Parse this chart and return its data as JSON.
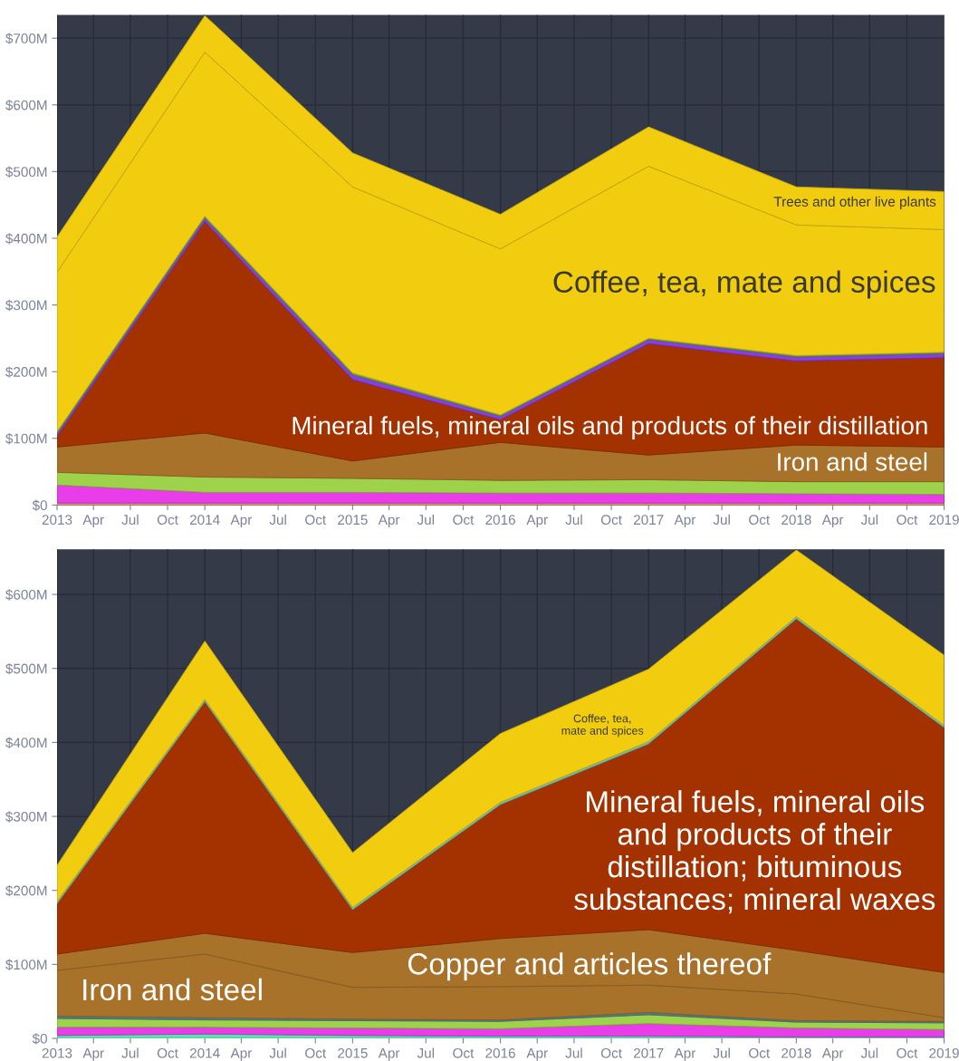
{
  "chart_data": [
    {
      "type": "area",
      "stacked": true,
      "legend": false,
      "grid": true,
      "x": [
        "2013",
        "2014",
        "2015",
        "2016",
        "2017",
        "2018",
        "2019"
      ],
      "xlim": [
        "2013",
        "2019"
      ],
      "xticks": [
        {
          "value": "2013",
          "label": "2013"
        },
        {
          "value": "2013-04",
          "label": "Apr"
        },
        {
          "value": "2013-07",
          "label": "Jul"
        },
        {
          "value": "2013-10",
          "label": "Oct"
        },
        {
          "value": "2014",
          "label": "2014"
        },
        {
          "value": "2014-04",
          "label": "Apr"
        },
        {
          "value": "2014-07",
          "label": "Jul"
        },
        {
          "value": "2014-10",
          "label": "Oct"
        },
        {
          "value": "2015",
          "label": "2015"
        },
        {
          "value": "2015-04",
          "label": "Apr"
        },
        {
          "value": "2015-07",
          "label": "Jul"
        },
        {
          "value": "2015-10",
          "label": "Oct"
        },
        {
          "value": "2016",
          "label": "2016"
        },
        {
          "value": "2016-04",
          "label": "Apr"
        },
        {
          "value": "2016-07",
          "label": "Jul"
        },
        {
          "value": "2016-10",
          "label": "Oct"
        },
        {
          "value": "2017",
          "label": "2017"
        },
        {
          "value": "2017-04",
          "label": "Apr"
        },
        {
          "value": "2017-07",
          "label": "Jul"
        },
        {
          "value": "2017-10",
          "label": "Oct"
        },
        {
          "value": "2018",
          "label": "2018"
        },
        {
          "value": "2018-04",
          "label": "Apr"
        },
        {
          "value": "2018-07",
          "label": "Jul"
        },
        {
          "value": "2018-10",
          "label": "Oct"
        },
        {
          "value": "2019",
          "label": "2019"
        }
      ],
      "ylim": [
        0,
        735
      ],
      "yticks": [
        {
          "value": 0,
          "label": "$0"
        },
        {
          "value": 100,
          "label": "$100M"
        },
        {
          "value": 200,
          "label": "$200M"
        },
        {
          "value": 300,
          "label": "$300M"
        },
        {
          "value": 400,
          "label": "$400M"
        },
        {
          "value": 500,
          "label": "$500M"
        },
        {
          "value": 600,
          "label": "$600M"
        },
        {
          "value": 700,
          "label": "$700M"
        }
      ],
      "series": [
        {
          "color": "#e8a070",
          "values": [
            3,
            3,
            3,
            3,
            3,
            3,
            3
          ]
        },
        {
          "color": "#e83de8",
          "values": [
            27,
            16,
            16,
            15,
            15,
            14,
            13
          ]
        },
        {
          "color": "#9dd24a",
          "values": [
            19,
            23,
            21,
            19,
            20,
            18,
            19
          ]
        },
        {
          "name": "Iron and steel",
          "color": "#a8722b",
          "values": [
            38,
            66,
            26,
            57,
            37,
            55,
            52
          ]
        },
        {
          "name": "Mineral fuels, mineral oils and products of their distillation",
          "color": "#a33200",
          "values": [
            16,
            317,
            122,
            34,
            167,
            126,
            134
          ]
        },
        {
          "color": "#8a3de0",
          "values": [
            4,
            5,
            7,
            5,
            6,
            6,
            6
          ]
        },
        {
          "color": "#5a9a6a",
          "values": [
            3,
            3,
            3,
            2,
            2,
            2,
            2
          ]
        },
        {
          "name": "Coffee, tea, mate and spices",
          "color": "#f2cd0f",
          "values": [
            239,
            246,
            279,
            249,
            258,
            196,
            184
          ]
        },
        {
          "name": "Trees and other live plants",
          "color": "#f2cd0f",
          "values": [
            53,
            55,
            51,
            52,
            59,
            57,
            57
          ]
        }
      ]
    },
    {
      "type": "area",
      "stacked": true,
      "legend": false,
      "grid": true,
      "x": [
        "2013",
        "2014",
        "2015",
        "2016",
        "2017",
        "2018",
        "2019"
      ],
      "xlim": [
        "2013",
        "2019"
      ],
      "xticks": [
        {
          "value": "2013",
          "label": "2013"
        },
        {
          "value": "2013-04",
          "label": "Apr"
        },
        {
          "value": "2013-07",
          "label": "Jul"
        },
        {
          "value": "2013-10",
          "label": "Oct"
        },
        {
          "value": "2014",
          "label": "2014"
        },
        {
          "value": "2014-04",
          "label": "Apr"
        },
        {
          "value": "2014-07",
          "label": "Jul"
        },
        {
          "value": "2014-10",
          "label": "Oct"
        },
        {
          "value": "2015",
          "label": "2015"
        },
        {
          "value": "2015-04",
          "label": "Apr"
        },
        {
          "value": "2015-07",
          "label": "Jul"
        },
        {
          "value": "2015-10",
          "label": "Oct"
        },
        {
          "value": "2016",
          "label": "2016"
        },
        {
          "value": "2016-04",
          "label": "Apr"
        },
        {
          "value": "2016-07",
          "label": "Jul"
        },
        {
          "value": "2016-10",
          "label": "Oct"
        },
        {
          "value": "2017",
          "label": "2017"
        },
        {
          "value": "2017-04",
          "label": "Apr"
        },
        {
          "value": "2017-07",
          "label": "Jul"
        },
        {
          "value": "2017-10",
          "label": "Oct"
        },
        {
          "value": "2018",
          "label": "2018"
        },
        {
          "value": "2018-04",
          "label": "Apr"
        },
        {
          "value": "2018-07",
          "label": "Jul"
        },
        {
          "value": "2018-10",
          "label": "Oct"
        },
        {
          "value": "2019",
          "label": "2019"
        }
      ],
      "ylim": [
        0,
        661
      ],
      "yticks": [
        {
          "value": 0,
          "label": "$0"
        },
        {
          "value": 100,
          "label": "$100M"
        },
        {
          "value": 200,
          "label": "$200M"
        },
        {
          "value": 300,
          "label": "$300M"
        },
        {
          "value": 400,
          "label": "$400M"
        },
        {
          "value": 500,
          "label": "$500M"
        },
        {
          "value": 600,
          "label": "$600M"
        }
      ],
      "series": [
        {
          "color": "#5ee0b0",
          "values": [
            4,
            6,
            4,
            3,
            3,
            2,
            2
          ]
        },
        {
          "color": "#e83de8",
          "values": [
            11,
            9,
            10,
            10,
            17,
            12,
            10
          ]
        },
        {
          "color": "#9dd24a",
          "values": [
            12,
            10,
            10,
            10,
            12,
            8,
            9
          ]
        },
        {
          "color": "#4f7f8f",
          "values": [
            3,
            3,
            2,
            2,
            3,
            2,
            2
          ]
        },
        {
          "name": "Iron and steel",
          "color": "#a8722b",
          "values": [
            62,
            86,
            43,
            45,
            37,
            36,
            5
          ]
        },
        {
          "name": "Copper and articles thereof",
          "color": "#a8722b",
          "values": [
            22,
            28,
            47,
            65,
            75,
            59,
            61
          ]
        },
        {
          "name": "Mineral fuels, mineral oils and products of their distillation; bituminous substances; mineral waxes",
          "color": "#a33200",
          "values": [
            68,
            313,
            58,
            181,
            251,
            448,
            331
          ]
        },
        {
          "color": "#6ec3b0",
          "values": [
            3,
            3,
            3,
            3,
            3,
            3,
            3
          ]
        },
        {
          "name": "Coffee, tea, mate and spices",
          "color": "#f2cd0f",
          "values": [
            49,
            79,
            74,
            93,
            98,
            90,
            95
          ]
        }
      ]
    }
  ]
}
